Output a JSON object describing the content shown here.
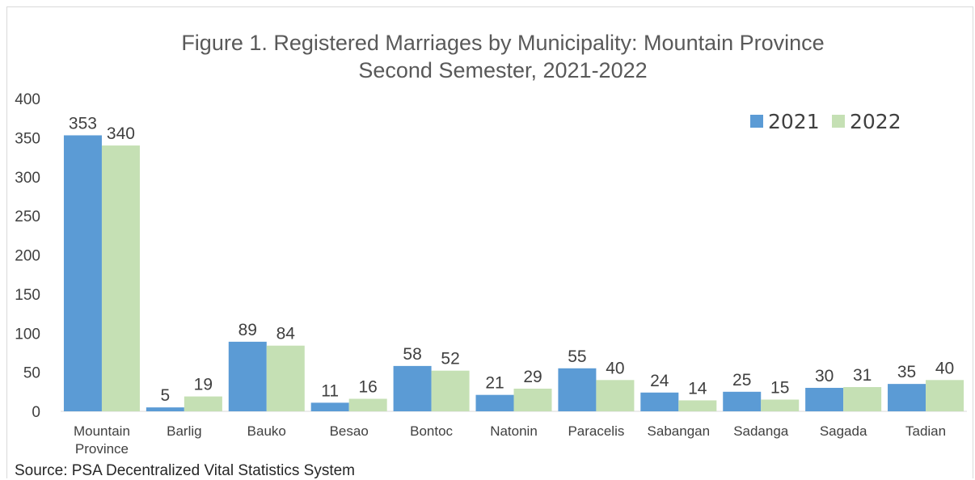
{
  "chart_data": {
    "type": "bar",
    "title": [
      "Figure 1. Registered Marriages by Municipality: Mountain Province",
      "Second Semester, 2021-2022"
    ],
    "categories": [
      [
        "Mountain",
        "Province"
      ],
      [
        "Barlig"
      ],
      [
        "Bauko"
      ],
      [
        "Besao"
      ],
      [
        "Bontoc"
      ],
      [
        "Natonin"
      ],
      [
        "Paracelis"
      ],
      [
        "Sabangan"
      ],
      [
        "Sadanga"
      ],
      [
        "Sagada"
      ],
      [
        "Tadian"
      ]
    ],
    "series": [
      {
        "name": "2021",
        "color": "#5b9bd5",
        "values": [
          353,
          5,
          89,
          11,
          58,
          21,
          55,
          24,
          25,
          30,
          35
        ]
      },
      {
        "name": "2022",
        "color": "#c5e0b4",
        "values": [
          340,
          19,
          84,
          16,
          52,
          29,
          40,
          14,
          15,
          31,
          40
        ]
      }
    ],
    "ylim": [
      0,
      400
    ],
    "yticks": [
      0,
      50,
      100,
      150,
      200,
      250,
      300,
      350,
      400
    ],
    "xlabel": "",
    "ylabel": "",
    "grid": false,
    "legend_position": "top-right",
    "data_labels": true
  },
  "source": "Source: PSA Decentralized Vital Statistics System"
}
